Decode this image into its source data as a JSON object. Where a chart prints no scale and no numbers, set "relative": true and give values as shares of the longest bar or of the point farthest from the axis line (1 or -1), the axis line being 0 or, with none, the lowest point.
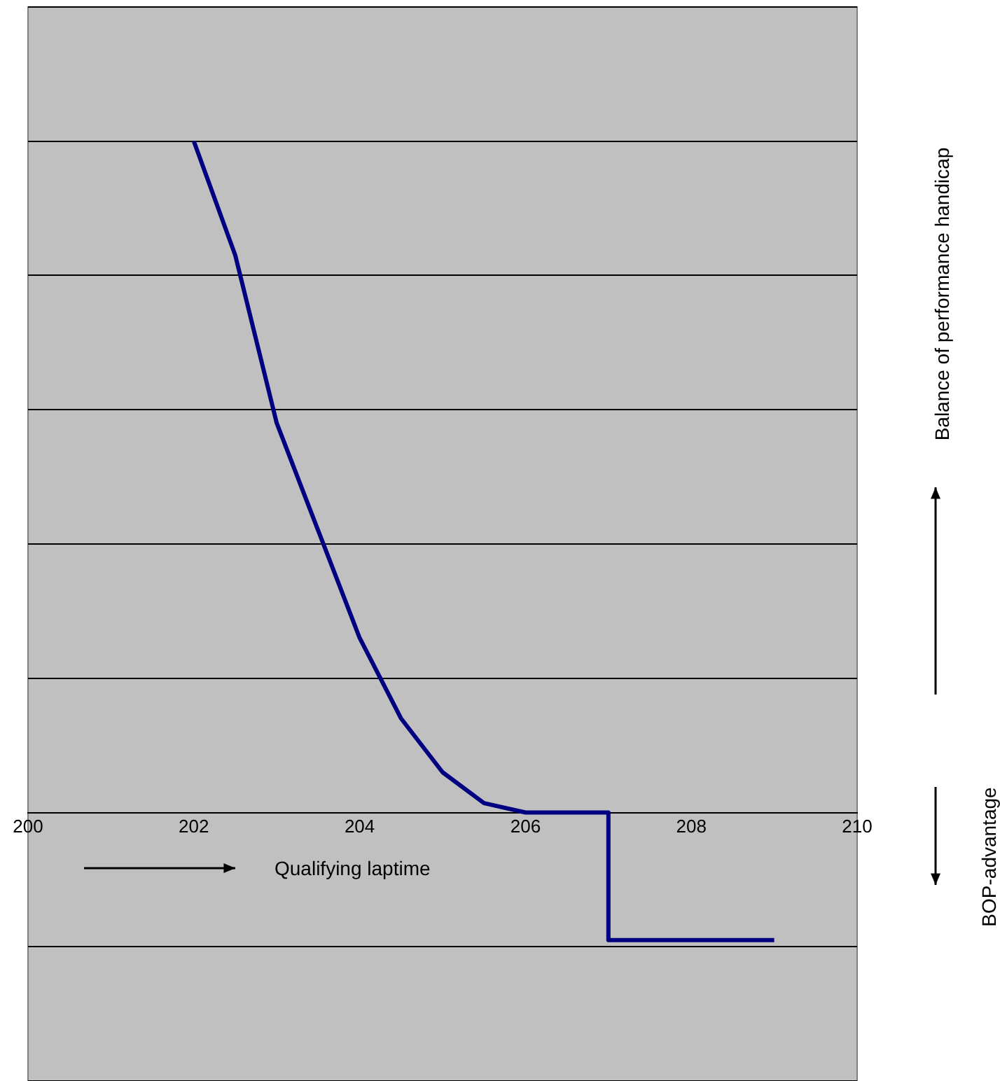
{
  "chart_data": {
    "type": "line",
    "relative": true,
    "x": [
      202,
      202.5,
      203,
      203.5,
      204,
      204.5,
      205,
      205.5,
      206,
      207,
      207,
      209
    ],
    "series": [
      {
        "color": "#000080",
        "values": [
          1,
          0.83,
          0.58,
          0.42,
          0.26,
          0.14,
          0.06,
          0.014,
          0,
          0,
          -0.19,
          -0.19
        ]
      }
    ],
    "xlim": [
      200,
      210
    ],
    "xticks": [
      200,
      202,
      204,
      206,
      208,
      210
    ],
    "grid": "y",
    "legend": false,
    "marker": "none",
    "line_style": "solid",
    "annotations": [
      "Qualifying laptime",
      "Balance of performance handicap",
      "BOP-advantage"
    ]
  }
}
